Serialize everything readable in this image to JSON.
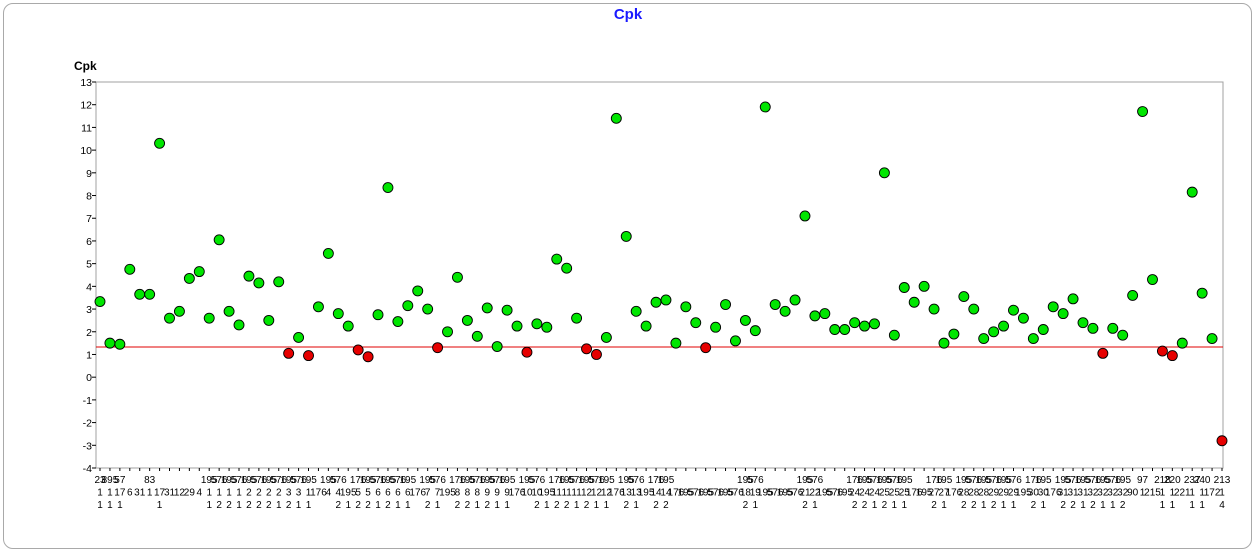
{
  "chart_data": {
    "type": "scatter",
    "title": "Cpk",
    "ylabel": "Cpk",
    "xlabel": "",
    "ylim": [
      -4,
      13
    ],
    "yticks": [
      -4,
      -3,
      -2,
      -1,
      0,
      1,
      2,
      3,
      4,
      5,
      6,
      7,
      8,
      9,
      10,
      11,
      12,
      13
    ],
    "grid": false,
    "reference_line": {
      "value": 1.33,
      "color": "#e00000"
    },
    "colors": {
      "pass": "#00e600",
      "fail": "#e60000",
      "title": "#1a1aff"
    },
    "points": [
      {
        "y": 3.33,
        "status": "pass",
        "label": [
          "23",
          "1",
          "1"
        ]
      },
      {
        "y": 1.5,
        "status": "pass",
        "label": [
          "895",
          "1",
          "1"
        ]
      },
      {
        "y": 1.45,
        "status": "pass",
        "label": [
          "57",
          "17",
          "1"
        ]
      },
      {
        "y": 4.75,
        "status": "pass",
        "label": [
          "",
          "6",
          ""
        ]
      },
      {
        "y": 3.65,
        "status": "pass",
        "label": [
          "",
          "31",
          ""
        ]
      },
      {
        "y": 3.65,
        "status": "pass",
        "label": [
          "83",
          "1",
          ""
        ]
      },
      {
        "y": 10.3,
        "status": "pass",
        "label": [
          "",
          "17",
          "1"
        ]
      },
      {
        "y": 2.6,
        "status": "pass",
        "label": [
          "",
          "31",
          ""
        ]
      },
      {
        "y": 2.9,
        "status": "pass",
        "label": [
          "",
          "12",
          ""
        ]
      },
      {
        "y": 4.35,
        "status": "pass",
        "label": [
          "",
          "29",
          ""
        ]
      },
      {
        "y": 4.65,
        "status": "pass",
        "label": [
          "",
          "4",
          ""
        ]
      },
      {
        "y": 2.6,
        "status": "pass",
        "label": [
          "195",
          "1",
          "1"
        ]
      },
      {
        "y": 6.05,
        "status": "pass",
        "label": [
          "576",
          "1",
          "2"
        ]
      },
      {
        "y": 2.9,
        "status": "pass",
        "label": [
          "195",
          "1",
          "2"
        ]
      },
      {
        "y": 2.3,
        "status": "pass",
        "label": [
          "576",
          "1",
          "1"
        ]
      },
      {
        "y": 4.45,
        "status": "pass",
        "label": [
          "195",
          "2",
          "2"
        ]
      },
      {
        "y": 4.15,
        "status": "pass",
        "label": [
          "576",
          "2",
          "2"
        ]
      },
      {
        "y": 2.5,
        "status": "pass",
        "label": [
          "195",
          "2",
          "2"
        ]
      },
      {
        "y": 4.2,
        "status": "pass",
        "label": [
          "576",
          "2",
          "1"
        ]
      },
      {
        "y": 1.05,
        "status": "fail",
        "label": [
          "195",
          "3",
          "2"
        ]
      },
      {
        "y": 1.75,
        "status": "pass",
        "label": [
          "576",
          "3",
          "1"
        ]
      },
      {
        "y": 0.95,
        "status": "fail",
        "label": [
          "195",
          "1",
          "1"
        ]
      },
      {
        "y": 3.1,
        "status": "pass",
        "label": [
          "",
          "176",
          ""
        ]
      },
      {
        "y": 5.45,
        "status": "pass",
        "label": [
          "195",
          "4",
          ""
        ]
      },
      {
        "y": 2.8,
        "status": "pass",
        "label": [
          "576",
          "4",
          "2"
        ]
      },
      {
        "y": 2.25,
        "status": "pass",
        "label": [
          "",
          "195",
          "1"
        ]
      },
      {
        "y": 1.2,
        "status": "fail",
        "label": [
          "176",
          "5",
          "2"
        ]
      },
      {
        "y": 0.9,
        "status": "fail",
        "label": [
          "195",
          "5",
          "2"
        ]
      },
      {
        "y": 2.75,
        "status": "pass",
        "label": [
          "576",
          "6",
          "1"
        ]
      },
      {
        "y": 8.35,
        "status": "pass",
        "label": [
          "195",
          "6",
          "2"
        ]
      },
      {
        "y": 2.45,
        "status": "pass",
        "label": [
          "576",
          "6",
          "1"
        ]
      },
      {
        "y": 3.15,
        "status": "pass",
        "label": [
          "195",
          "6",
          "1"
        ]
      },
      {
        "y": 3.8,
        "status": "pass",
        "label": [
          "",
          "176",
          ""
        ]
      },
      {
        "y": 3.0,
        "status": "pass",
        "label": [
          "195",
          "7",
          "2"
        ]
      },
      {
        "y": 1.3,
        "status": "fail",
        "label": [
          "576",
          "7",
          "1"
        ]
      },
      {
        "y": 2.0,
        "status": "pass",
        "label": [
          "",
          "195",
          ""
        ]
      },
      {
        "y": 4.4,
        "status": "pass",
        "label": [
          "176",
          "8",
          "2"
        ]
      },
      {
        "y": 2.5,
        "status": "pass",
        "label": [
          "195",
          "8",
          "2"
        ]
      },
      {
        "y": 1.8,
        "status": "pass",
        "label": [
          "576",
          "8",
          "1"
        ]
      },
      {
        "y": 3.05,
        "status": "pass",
        "label": [
          "195",
          "9",
          "2"
        ]
      },
      {
        "y": 1.35,
        "status": "pass",
        "label": [
          "576",
          "9",
          "1"
        ]
      },
      {
        "y": 2.95,
        "status": "pass",
        "label": [
          "195",
          "9",
          "1"
        ]
      },
      {
        "y": 2.25,
        "status": "pass",
        "label": [
          "",
          "176",
          ""
        ]
      },
      {
        "y": 1.1,
        "status": "fail",
        "label": [
          "195",
          "10",
          ""
        ]
      },
      {
        "y": 2.35,
        "status": "pass",
        "label": [
          "576",
          "10",
          "2"
        ]
      },
      {
        "y": 2.2,
        "status": "pass",
        "label": [
          "",
          "195",
          "1"
        ]
      },
      {
        "y": 5.2,
        "status": "pass",
        "label": [
          "176",
          "11",
          "2"
        ]
      },
      {
        "y": 4.8,
        "status": "pass",
        "label": [
          "195",
          "11",
          "2"
        ]
      },
      {
        "y": 2.6,
        "status": "pass",
        "label": [
          "576",
          "11",
          "1"
        ]
      },
      {
        "y": 1.25,
        "status": "fail",
        "label": [
          "195",
          "12",
          "2"
        ]
      },
      {
        "y": 1.0,
        "status": "fail",
        "label": [
          "576",
          "12",
          "1"
        ]
      },
      {
        "y": 1.75,
        "status": "pass",
        "label": [
          "195",
          "12",
          "1"
        ]
      },
      {
        "y": 11.4,
        "status": "pass",
        "label": [
          "",
          "176",
          ""
        ]
      },
      {
        "y": 6.2,
        "status": "pass",
        "label": [
          "195",
          "13",
          "2"
        ]
      },
      {
        "y": 2.9,
        "status": "pass",
        "label": [
          "576",
          "13",
          "1"
        ]
      },
      {
        "y": 2.25,
        "status": "pass",
        "label": [
          "",
          "195",
          ""
        ]
      },
      {
        "y": 3.3,
        "status": "pass",
        "label": [
          "176",
          "14",
          "2"
        ]
      },
      {
        "y": 3.4,
        "status": "pass",
        "label": [
          "195",
          "14",
          "2"
        ]
      },
      {
        "y": 1.5,
        "status": "pass",
        "label": [
          "",
          "176",
          ""
        ]
      },
      {
        "y": 3.1,
        "status": "pass",
        "label": [
          "",
          "195",
          ""
        ]
      },
      {
        "y": 2.4,
        "status": "pass",
        "label": [
          "",
          "576",
          ""
        ]
      },
      {
        "y": 1.3,
        "status": "fail",
        "label": [
          "",
          "195",
          ""
        ]
      },
      {
        "y": 2.2,
        "status": "pass",
        "label": [
          "",
          "576",
          ""
        ]
      },
      {
        "y": 3.2,
        "status": "pass",
        "label": [
          "",
          "195",
          ""
        ]
      },
      {
        "y": 1.6,
        "status": "pass",
        "label": [
          "",
          "576",
          ""
        ]
      },
      {
        "y": 2.5,
        "status": "pass",
        "label": [
          "195",
          "18",
          "2"
        ]
      },
      {
        "y": 2.05,
        "status": "pass",
        "label": [
          "576",
          "19",
          "1"
        ]
      },
      {
        "y": 11.9,
        "status": "pass",
        "label": [
          "",
          "195",
          ""
        ]
      },
      {
        "y": 3.2,
        "status": "pass",
        "label": [
          "",
          "576",
          ""
        ]
      },
      {
        "y": 2.9,
        "status": "pass",
        "label": [
          "",
          "195",
          ""
        ]
      },
      {
        "y": 3.4,
        "status": "pass",
        "label": [
          "",
          "576",
          ""
        ]
      },
      {
        "y": 7.1,
        "status": "pass",
        "label": [
          "195",
          "21",
          "2"
        ]
      },
      {
        "y": 2.7,
        "status": "pass",
        "label": [
          "576",
          "22",
          "1"
        ]
      },
      {
        "y": 2.8,
        "status": "pass",
        "label": [
          "",
          "195",
          ""
        ]
      },
      {
        "y": 2.1,
        "status": "pass",
        "label": [
          "",
          "576",
          ""
        ]
      },
      {
        "y": 2.1,
        "status": "pass",
        "label": [
          "",
          "195",
          ""
        ]
      },
      {
        "y": 2.4,
        "status": "pass",
        "label": [
          "176",
          "24",
          "2"
        ]
      },
      {
        "y": 2.25,
        "status": "pass",
        "label": [
          "195",
          "24",
          "2"
        ]
      },
      {
        "y": 2.35,
        "status": "pass",
        "label": [
          "576",
          "24",
          "1"
        ]
      },
      {
        "y": 9.0,
        "status": "pass",
        "label": [
          "195",
          "25",
          "2"
        ]
      },
      {
        "y": 1.85,
        "status": "pass",
        "label": [
          "576",
          "25",
          "1"
        ]
      },
      {
        "y": 3.95,
        "status": "pass",
        "label": [
          "195",
          "25",
          "1"
        ]
      },
      {
        "y": 3.3,
        "status": "pass",
        "label": [
          "",
          "176",
          ""
        ]
      },
      {
        "y": 4.0,
        "status": "pass",
        "label": [
          "",
          "195",
          ""
        ]
      },
      {
        "y": 3.0,
        "status": "pass",
        "label": [
          "176",
          "27",
          "2"
        ]
      },
      {
        "y": 1.5,
        "status": "pass",
        "label": [
          "195",
          "27",
          "1"
        ]
      },
      {
        "y": 1.9,
        "status": "pass",
        "label": [
          "",
          "176",
          ""
        ]
      },
      {
        "y": 3.55,
        "status": "pass",
        "label": [
          "195",
          "28",
          "2"
        ]
      },
      {
        "y": 3.0,
        "status": "pass",
        "label": [
          "576",
          "28",
          "2"
        ]
      },
      {
        "y": 1.7,
        "status": "pass",
        "label": [
          "195",
          "28",
          "1"
        ]
      },
      {
        "y": 2.0,
        "status": "pass",
        "label": [
          "576",
          "29",
          "2"
        ]
      },
      {
        "y": 2.25,
        "status": "pass",
        "label": [
          "195",
          "29",
          "1"
        ]
      },
      {
        "y": 2.95,
        "status": "pass",
        "label": [
          "576",
          "29",
          "1"
        ]
      },
      {
        "y": 2.6,
        "status": "pass",
        "label": [
          "",
          "195",
          ""
        ]
      },
      {
        "y": 1.7,
        "status": "pass",
        "label": [
          "176",
          "30",
          "2"
        ]
      },
      {
        "y": 2.1,
        "status": "pass",
        "label": [
          "195",
          "30",
          "1"
        ]
      },
      {
        "y": 3.1,
        "status": "pass",
        "label": [
          "",
          "176",
          ""
        ]
      },
      {
        "y": 2.8,
        "status": "pass",
        "label": [
          "195",
          "31",
          "2"
        ]
      },
      {
        "y": 3.45,
        "status": "pass",
        "label": [
          "576",
          "31",
          "2"
        ]
      },
      {
        "y": 2.4,
        "status": "pass",
        "label": [
          "195",
          "31",
          "1"
        ]
      },
      {
        "y": 2.15,
        "status": "pass",
        "label": [
          "576",
          "32",
          "2"
        ]
      },
      {
        "y": 1.05,
        "status": "fail",
        "label": [
          "195",
          "32",
          "1"
        ]
      },
      {
        "y": 2.15,
        "status": "pass",
        "label": [
          "576",
          "32",
          "1"
        ]
      },
      {
        "y": 1.85,
        "status": "pass",
        "label": [
          "195",
          "32",
          "2"
        ]
      },
      {
        "y": 3.6,
        "status": "pass",
        "label": [
          "",
          "90",
          ""
        ]
      },
      {
        "y": 11.7,
        "status": "pass",
        "label": [
          "97",
          "1",
          ""
        ]
      },
      {
        "y": 4.3,
        "status": "pass",
        "label": [
          "",
          "215",
          ""
        ]
      },
      {
        "y": 1.15,
        "status": "fail",
        "label": [
          "218",
          "1",
          "1"
        ]
      },
      {
        "y": 0.95,
        "status": "fail",
        "label": [
          "220",
          "1",
          "1"
        ]
      },
      {
        "y": 1.5,
        "status": "pass",
        "label": [
          "",
          "221",
          ""
        ]
      },
      {
        "y": 8.15,
        "status": "pass",
        "label": [
          "237",
          "1",
          "1"
        ]
      },
      {
        "y": 3.7,
        "status": "pass",
        "label": [
          "240",
          "1",
          "1"
        ]
      },
      {
        "y": 1.7,
        "status": "pass",
        "label": [
          "",
          "172",
          ""
        ]
      },
      {
        "y": -2.8,
        "status": "fail",
        "label": [
          "213",
          "1",
          "4"
        ]
      }
    ]
  }
}
